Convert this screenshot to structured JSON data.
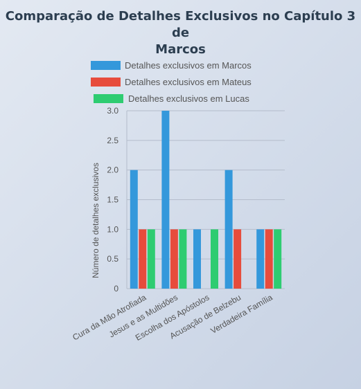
{
  "chart_data": {
    "type": "bar",
    "title": "Comparação de Detalhes Exclusivos no Capítulo 3 de Marcos",
    "title_lines": [
      "Comparação de Detalhes Exclusivos no Capítulo 3 de",
      "Marcos"
    ],
    "xlabel": "",
    "ylabel": "Número de detalhes exclusivos",
    "ylim": [
      0,
      3
    ],
    "yticks": [
      "0",
      "0.5",
      "1.0",
      "1.5",
      "2.0",
      "2.5",
      "3.0"
    ],
    "ytick_values": [
      0,
      0.5,
      1,
      1.5,
      2,
      2.5,
      3
    ],
    "categories": [
      "Cura da Mão Atrofiada",
      "Jesus e as Multidões",
      "Escolha dos Apóstolos",
      "Acusação de Belzebu",
      "Verdadeira Família"
    ],
    "series": [
      {
        "name": "Detalhes exclusivos em Marcos",
        "values": [
          2,
          3,
          1,
          2,
          1
        ],
        "color": "#3498db"
      },
      {
        "name": "Detalhes exclusivos em Mateus",
        "values": [
          1,
          1,
          0,
          1,
          1
        ],
        "color": "#e74c3c"
      },
      {
        "name": "Detalhes exclusivos em Lucas",
        "values": [
          1,
          1,
          1,
          0,
          1
        ],
        "color": "#2ecc71"
      }
    ],
    "grid": true,
    "legend_position": "top"
  }
}
